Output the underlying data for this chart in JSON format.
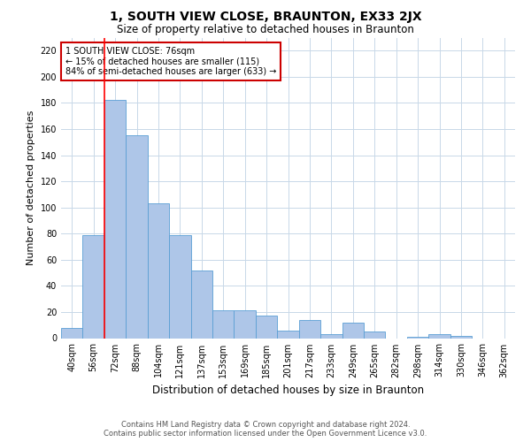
{
  "title": "1, SOUTH VIEW CLOSE, BRAUNTON, EX33 2JX",
  "subtitle": "Size of property relative to detached houses in Braunton",
  "xlabel": "Distribution of detached houses by size in Braunton",
  "ylabel": "Number of detached properties",
  "categories": [
    "40sqm",
    "56sqm",
    "72sqm",
    "88sqm",
    "104sqm",
    "121sqm",
    "137sqm",
    "153sqm",
    "169sqm",
    "185sqm",
    "201sqm",
    "217sqm",
    "233sqm",
    "249sqm",
    "265sqm",
    "282sqm",
    "298sqm",
    "314sqm",
    "330sqm",
    "346sqm",
    "362sqm"
  ],
  "values": [
    8,
    79,
    182,
    155,
    103,
    79,
    52,
    21,
    21,
    17,
    6,
    14,
    3,
    12,
    5,
    0,
    1,
    3,
    2,
    0,
    0
  ],
  "bar_color": "#aec6e8",
  "bar_edge_color": "#5a9fd4",
  "annotation_line1": "1 SOUTH VIEW CLOSE: 76sqm",
  "annotation_line2": "← 15% of detached houses are smaller (115)",
  "annotation_line3": "84% of semi-detached houses are larger (633) →",
  "annotation_box_color": "#cc0000",
  "property_bar_index": 2,
  "ylim": [
    0,
    230
  ],
  "yticks": [
    0,
    20,
    40,
    60,
    80,
    100,
    120,
    140,
    160,
    180,
    200,
    220
  ],
  "footer1": "Contains HM Land Registry data © Crown copyright and database right 2024.",
  "footer2": "Contains public sector information licensed under the Open Government Licence v3.0.",
  "background_color": "#ffffff",
  "grid_color": "#c8d8e8",
  "title_fontsize": 10,
  "subtitle_fontsize": 8.5,
  "ylabel_fontsize": 8,
  "xlabel_fontsize": 8.5,
  "tick_fontsize": 7,
  "annotation_fontsize": 7,
  "footer_fontsize": 6
}
